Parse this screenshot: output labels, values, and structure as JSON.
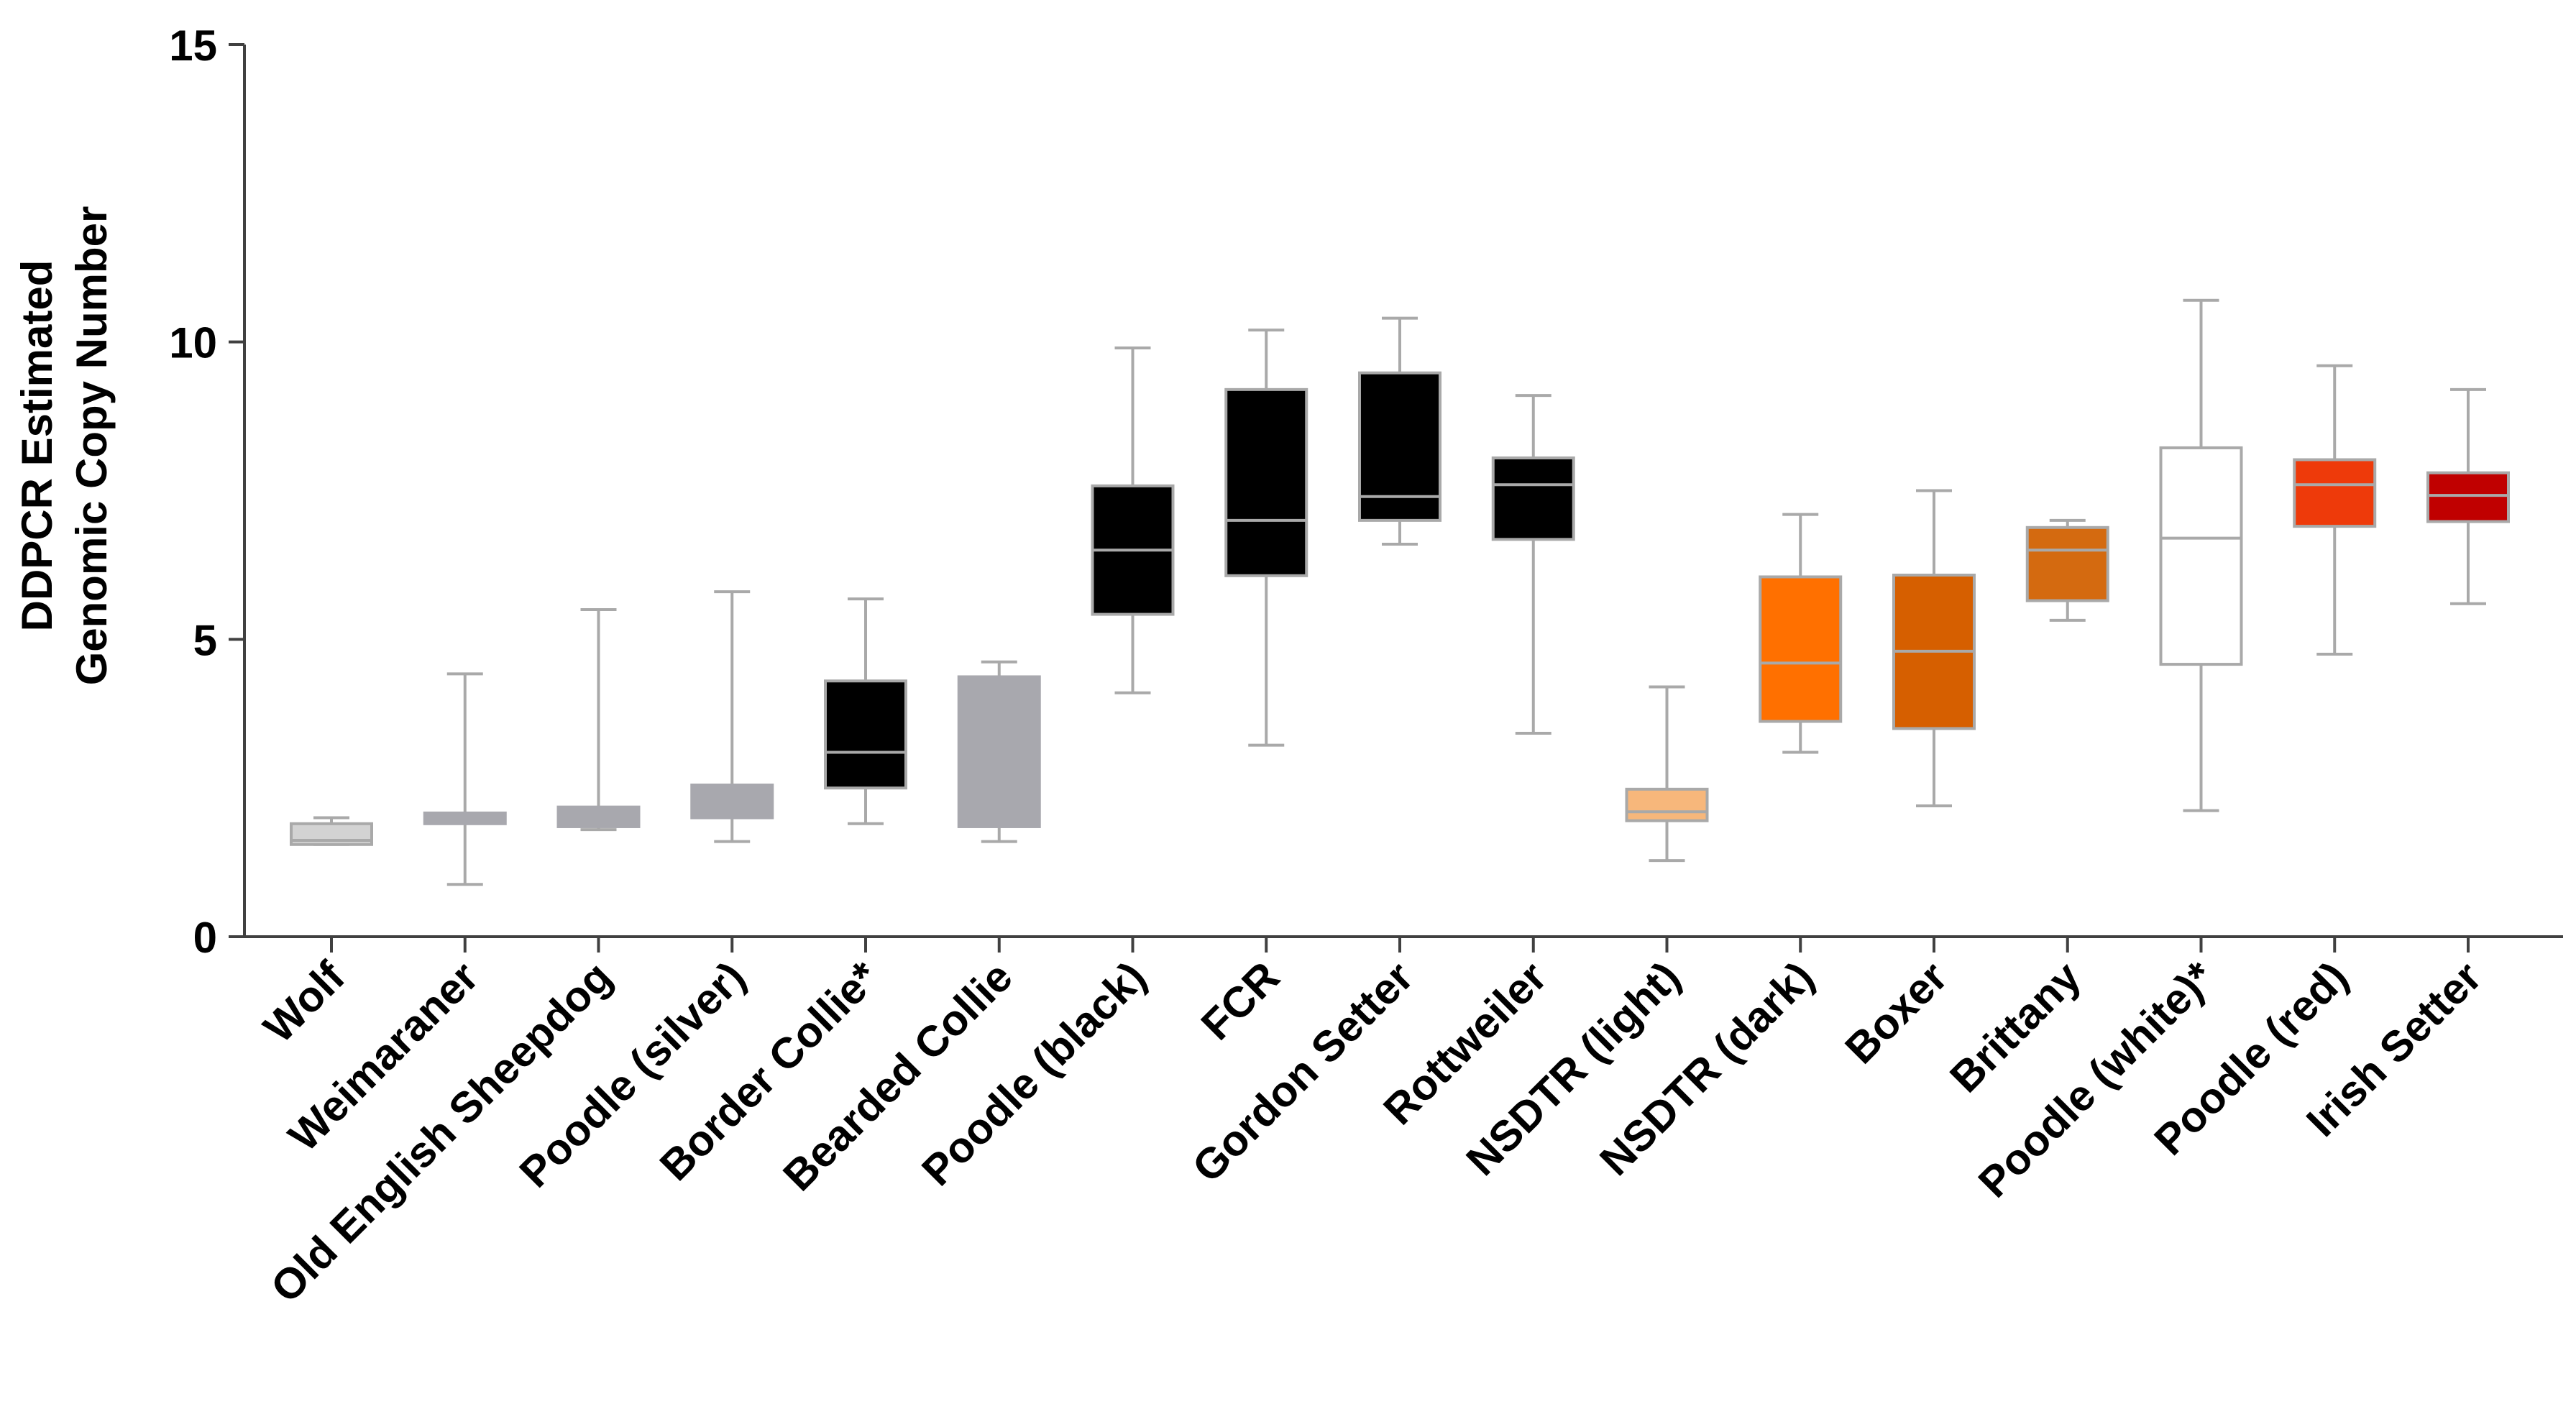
{
  "chart_data": {
    "type": "boxplot",
    "title": "",
    "xlabel": "",
    "ylabel_lines": [
      "DDPCR Estimated",
      "Genomic Copy  Number"
    ],
    "ylim": [
      0,
      15
    ],
    "yticks": [
      0,
      5,
      10,
      15
    ],
    "grid": false,
    "categories": [
      "Wolf",
      "Weimaraner",
      "Old English Sheepdog",
      "Poodle (silver)",
      "Border Collie*",
      "Bearded Collie",
      "Poodle (black)",
      "FCR",
      "Gordon Setter",
      "Rottweiler",
      "NSDTR (light)",
      "NSDTR (dark)",
      "Boxer",
      "Brittany",
      "Poodle (white)*",
      "Poodle (red)",
      "Irish Setter"
    ],
    "boxes": [
      {
        "category": "Wolf",
        "min": 1.55,
        "q1": 1.55,
        "median": 1.62,
        "q3": 1.9,
        "max": 2.0,
        "fill": "#d3d3d3",
        "line": "#a9a9a9",
        "median_color": "#a9a9a9"
      },
      {
        "category": "Weimaraner",
        "min": 0.88,
        "q1": 1.9,
        "median": 2.0,
        "q3": 2.08,
        "max": 4.42,
        "fill": "#a8a8ae",
        "line": "#a8a8ae",
        "median_color": "#a8a8ae"
      },
      {
        "category": "Old English Sheepdog",
        "min": 1.8,
        "q1": 1.85,
        "median": 1.9,
        "q3": 2.18,
        "max": 5.5,
        "fill": "#a8a8ae",
        "line": "#a8a8ae",
        "median_color": "#a8a8ae"
      },
      {
        "category": "Poodle (silver)",
        "min": 1.6,
        "q1": 2.0,
        "median": 2.25,
        "q3": 2.55,
        "max": 5.8,
        "fill": "#a8a8ae",
        "line": "#a8a8ae",
        "median_color": "#a8a8ae"
      },
      {
        "category": "Border Collie*",
        "min": 1.9,
        "q1": 2.5,
        "median": 3.1,
        "q3": 4.3,
        "max": 5.68,
        "fill": "#000000",
        "line": "#a9a9a9",
        "median_color": "#a9a9a9"
      },
      {
        "category": "Bearded Collie",
        "min": 1.6,
        "q1": 1.85,
        "median": 4.3,
        "q3": 4.37,
        "max": 4.62,
        "fill": "#a8a8ae",
        "line": "#a8a8ae",
        "median_color": "#a8a8ae"
      },
      {
        "category": "Poodle (black)",
        "min": 4.1,
        "q1": 5.42,
        "median": 6.5,
        "q3": 7.58,
        "max": 9.9,
        "fill": "#000000",
        "line": "#a9a9a9",
        "median_color": "#a9a9a9"
      },
      {
        "category": "FCR",
        "min": 3.22,
        "q1": 6.07,
        "median": 7.0,
        "q3": 9.2,
        "max": 10.2,
        "fill": "#000000",
        "line": "#a9a9a9",
        "median_color": "#a9a9a9"
      },
      {
        "category": "Gordon Setter",
        "min": 6.6,
        "q1": 7.0,
        "median": 7.4,
        "q3": 9.48,
        "max": 10.4,
        "fill": "#000000",
        "line": "#a9a9a9",
        "median_color": "#a9a9a9"
      },
      {
        "category": "Rottweiler",
        "min": 3.42,
        "q1": 6.68,
        "median": 7.6,
        "q3": 8.05,
        "max": 9.1,
        "fill": "#000000",
        "line": "#a9a9a9",
        "median_color": "#a9a9a9"
      },
      {
        "category": "NSDTR (light)",
        "min": 1.28,
        "q1": 1.95,
        "median": 2.1,
        "q3": 2.48,
        "max": 4.2,
        "fill": "#f7b77b",
        "line": "#a9a9a9",
        "median_color": "#a9a9a9"
      },
      {
        "category": "NSDTR (dark)",
        "min": 3.1,
        "q1": 3.62,
        "median": 4.6,
        "q3": 6.05,
        "max": 7.1,
        "fill": "#ff7000",
        "line": "#a9a9a9",
        "median_color": "#a9a9a9"
      },
      {
        "category": "Boxer",
        "min": 2.2,
        "q1": 3.5,
        "median": 4.8,
        "q3": 6.08,
        "max": 7.5,
        "fill": "#d65f00",
        "line": "#a9a9a9",
        "median_color": "#a9a9a9"
      },
      {
        "category": "Brittany",
        "min": 5.32,
        "q1": 5.65,
        "median": 6.5,
        "q3": 6.88,
        "max": 7.0,
        "fill": "#d46a10",
        "line": "#a9a9a9",
        "median_color": "#a9a9a9"
      },
      {
        "category": "Poodle (white)*",
        "min": 2.12,
        "q1": 4.58,
        "median": 6.7,
        "q3": 8.22,
        "max": 10.7,
        "fill": "#ffffff",
        "line": "#a9a9a9",
        "median_color": "#a9a9a9"
      },
      {
        "category": "Poodle (red)",
        "min": 4.75,
        "q1": 6.9,
        "median": 7.6,
        "q3": 8.02,
        "max": 9.6,
        "fill": "#ee3a0a",
        "line": "#a9a9a9",
        "median_color": "#a9a9a9"
      },
      {
        "category": "Irish Setter",
        "min": 5.6,
        "q1": 6.98,
        "median": 7.42,
        "q3": 7.8,
        "max": 9.2,
        "fill": "#c00000",
        "line": "#a9a9a9",
        "median_color": "#a9a9a9"
      }
    ],
    "colors": {
      "axis": "#404040",
      "whisker": "#a9a9a9",
      "text": "#000000"
    }
  }
}
